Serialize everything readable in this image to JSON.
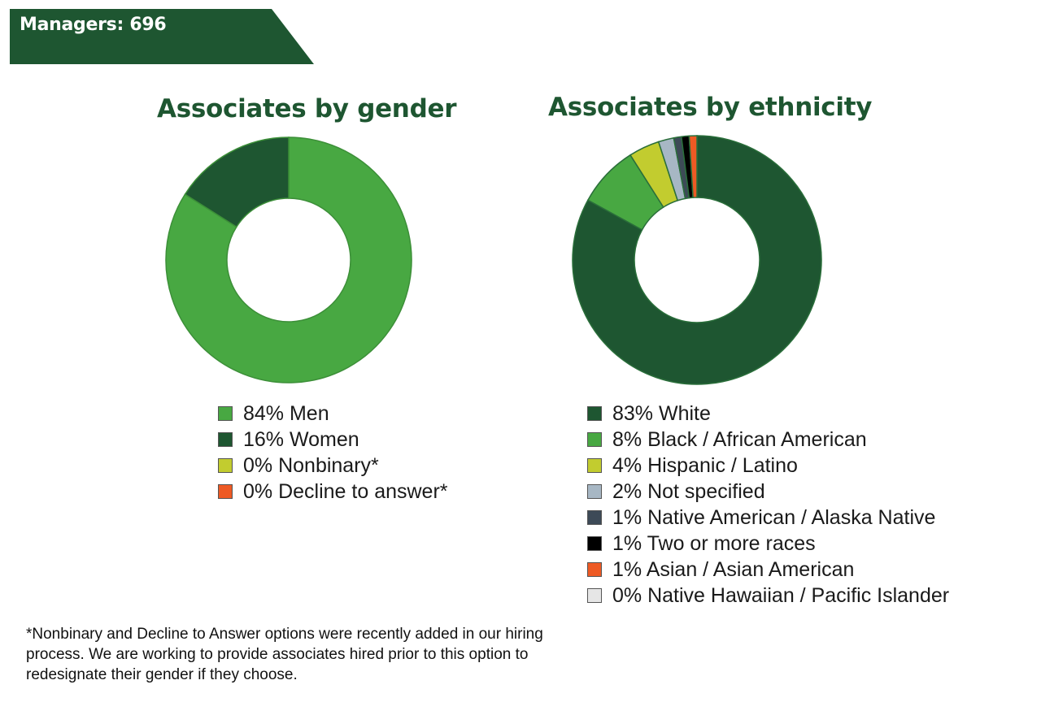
{
  "header": {
    "title": "Managers: 696"
  },
  "colors": {
    "dark_green": "#1e5631",
    "light_green": "#48a842",
    "lime": "#c2cc2f",
    "orange": "#ee5a24",
    "gray_blue": "#a7b7c4",
    "slate": "#3d4a57",
    "black": "#000000",
    "light_gray": "#e6e6e6"
  },
  "chart_data": [
    {
      "type": "pie",
      "title": "Associates by gender",
      "categories": [
        "Men",
        "Women",
        "Nonbinary*",
        "Decline to answer*"
      ],
      "values": [
        84,
        16,
        0,
        0
      ],
      "colors": [
        "#48a842",
        "#1e5631",
        "#c2cc2f",
        "#ee5a24"
      ],
      "legend_labels": [
        "84% Men",
        "16% Women",
        "0% Nonbinary*",
        "0% Decline to answer*"
      ],
      "legend_position": "bottom"
    },
    {
      "type": "pie",
      "title": "Associates by ethnicity",
      "categories": [
        "White",
        "Black / African American",
        "Hispanic / Latino",
        "Not specified",
        "Native American / Alaska Native",
        "Two or more races",
        "Asian / Asian American",
        "Native Hawaiian / Pacific Islander"
      ],
      "values": [
        83,
        8,
        4,
        2,
        1,
        1,
        1,
        0
      ],
      "colors": [
        "#1e5631",
        "#48a842",
        "#c2cc2f",
        "#a7b7c4",
        "#3d4a57",
        "#000000",
        "#ee5a24",
        "#e6e6e6"
      ],
      "legend_labels": [
        "83% White",
        "8% Black / African American",
        "4% Hispanic / Latino",
        "2% Not specified",
        "1% Native American / Alaska Native",
        "1% Two or more races",
        "1% Asian / Asian American",
        "0% Native Hawaiian / Pacific Islander"
      ],
      "legend_position": "bottom"
    }
  ],
  "footnote": "*Nonbinary and Decline to Answer options were recently added in our hiring process. We are working to provide associates hired prior to this option to redesignate their gender if they choose."
}
